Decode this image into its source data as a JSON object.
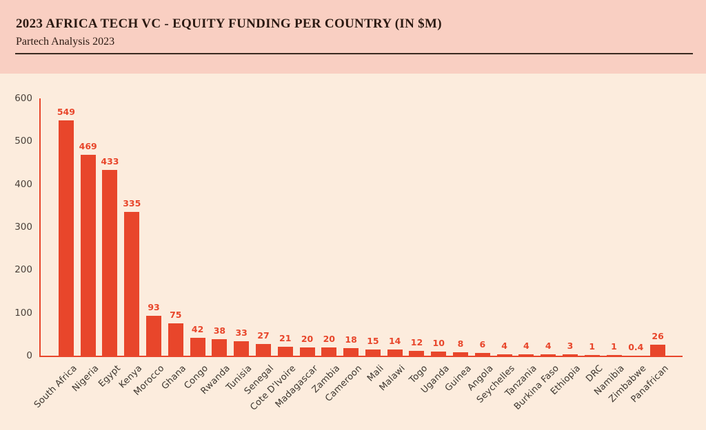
{
  "header": {
    "title": "2023 AFRICA TECH VC - EQUITY FUNDING PER COUNTRY (IN $M)",
    "subtitle": "Partech Analysis 2023"
  },
  "chart_data": {
    "type": "bar",
    "title": "2023 AFRICA TECH VC - EQUITY FUNDING PER COUNTRY (IN $M)",
    "subtitle": "Partech Analysis 2023",
    "categories": [
      "South Africa",
      "Nigeria",
      "Egypt",
      "Kenya",
      "Morocco",
      "Ghana",
      "Congo",
      "Rwanda",
      "Tunisia",
      "Senegal",
      "Cote D'Ivoire",
      "Madagascar",
      "Zambia",
      "Cameroon",
      "Mali",
      "Malawi",
      "Togo",
      "Uganda",
      "Guinea",
      "Angola",
      "Seychelles",
      "Tanzania",
      "Burkina Faso",
      "Ethiopia",
      "DRC",
      "Namibia",
      "Zimbabwe",
      "Panafrican"
    ],
    "values": [
      549,
      469,
      433,
      335,
      93,
      75,
      42,
      38,
      33,
      27,
      21,
      20,
      20,
      18,
      15,
      14,
      12,
      10,
      8,
      6,
      4,
      4,
      4,
      3,
      1,
      1,
      0.4,
      26
    ],
    "y_ticks": [
      0,
      100,
      200,
      300,
      400,
      500,
      600
    ],
    "ylim": [
      0,
      600
    ],
    "xlabel": "",
    "ylabel": "",
    "grid": false,
    "legend": false,
    "bar_labels_shown": true,
    "colors": {
      "bar": "#e8462b",
      "value_label": "#e8462b",
      "axis": "#e8462b",
      "tick_label": "#4a413a",
      "category_label": "#3e362f",
      "header_bg": "#f9cfc2",
      "chart_bg": "#fcecdd",
      "title_text": "#2b1a12",
      "divider": "#3a2a20"
    }
  }
}
